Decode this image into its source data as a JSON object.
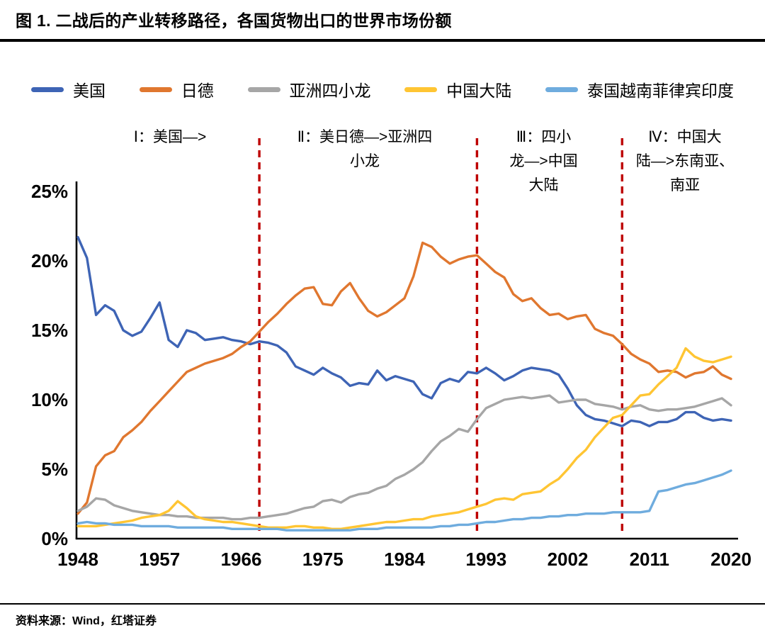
{
  "title": "图 1. 二战后的产业转移路径，各国货物出口的世界市场份额",
  "source": "资料来源：Wind，红塔证券",
  "chart_data": {
    "type": "line",
    "title": "二战后的产业转移路径，各国货物出口的世界市场份额",
    "xlabel": "",
    "ylabel": "",
    "ylim": [
      0,
      25
    ],
    "grid": false,
    "legend_position": "top",
    "x": [
      1948,
      1949,
      1950,
      1951,
      1952,
      1953,
      1954,
      1955,
      1956,
      1957,
      1958,
      1959,
      1960,
      1961,
      1962,
      1963,
      1964,
      1965,
      1966,
      1967,
      1968,
      1969,
      1970,
      1971,
      1972,
      1973,
      1974,
      1975,
      1976,
      1977,
      1978,
      1979,
      1980,
      1981,
      1982,
      1983,
      1984,
      1985,
      1986,
      1987,
      1988,
      1989,
      1990,
      1991,
      1992,
      1993,
      1994,
      1995,
      1996,
      1997,
      1998,
      1999,
      2000,
      2001,
      2002,
      2003,
      2004,
      2005,
      2006,
      2007,
      2008,
      2009,
      2010,
      2011,
      2012,
      2013,
      2014,
      2015,
      2016,
      2017,
      2018,
      2019,
      2020
    ],
    "yticks": [
      {
        "v": 0,
        "label": "0%"
      },
      {
        "v": 5,
        "label": "5%"
      },
      {
        "v": 10,
        "label": "10%"
      },
      {
        "v": 15,
        "label": "15%"
      },
      {
        "v": 20,
        "label": "20%"
      },
      {
        "v": 25,
        "label": "25%"
      }
    ],
    "xticks": [
      {
        "v": 1948,
        "label": "1948"
      },
      {
        "v": 1957,
        "label": "1957"
      },
      {
        "v": 1966,
        "label": "1966"
      },
      {
        "v": 1975,
        "label": "1975"
      },
      {
        "v": 1984,
        "label": "1984"
      },
      {
        "v": 1993,
        "label": "1993"
      },
      {
        "v": 2002,
        "label": "2002"
      },
      {
        "v": 2011,
        "label": "2011"
      },
      {
        "v": 2020,
        "label": "2020"
      }
    ],
    "dividers": {
      "color": "#BE0000",
      "years": [
        1968,
        1992,
        2008
      ]
    },
    "annotations": [
      {
        "text": "Ⅰ：美国—>"
      },
      {
        "text": "Ⅱ：美日德—>亚洲四\n小龙"
      },
      {
        "text": "Ⅲ：四小\n龙—>中国\n大陆"
      },
      {
        "text": "Ⅳ：中国大\n陆—>东南亚、\n南亚"
      }
    ],
    "series": [
      {
        "name": "美国",
        "color": "#3E64B5",
        "values": [
          21.7,
          20.2,
          16.1,
          16.8,
          16.4,
          15.0,
          14.6,
          14.9,
          15.9,
          17.0,
          14.3,
          13.8,
          15.0,
          14.8,
          14.3,
          14.4,
          14.5,
          14.3,
          14.2,
          14.0,
          14.2,
          14.1,
          13.9,
          13.4,
          12.4,
          12.1,
          11.8,
          12.3,
          11.9,
          11.6,
          11.0,
          11.2,
          11.1,
          12.1,
          11.4,
          11.7,
          11.5,
          11.3,
          10.4,
          10.1,
          11.2,
          11.5,
          11.3,
          12.0,
          11.9,
          12.3,
          11.9,
          11.4,
          11.7,
          12.1,
          12.3,
          12.2,
          12.1,
          11.8,
          10.8,
          9.6,
          8.9,
          8.6,
          8.5,
          8.3,
          8.1,
          8.5,
          8.4,
          8.1,
          8.4,
          8.4,
          8.6,
          9.1,
          9.1,
          8.7,
          8.5,
          8.6,
          8.5
        ]
      },
      {
        "name": "日德",
        "color": "#E0772F",
        "values": [
          1.8,
          2.6,
          5.2,
          6.0,
          6.3,
          7.3,
          7.8,
          8.4,
          9.2,
          9.9,
          10.6,
          11.3,
          12.0,
          12.3,
          12.6,
          12.8,
          13.0,
          13.3,
          13.8,
          14.2,
          14.9,
          15.6,
          16.2,
          16.9,
          17.5,
          18.0,
          18.1,
          16.9,
          16.8,
          17.8,
          18.4,
          17.3,
          16.4,
          16.0,
          16.3,
          16.8,
          17.3,
          18.9,
          21.3,
          21.0,
          20.3,
          19.8,
          20.1,
          20.3,
          20.4,
          19.8,
          19.2,
          18.8,
          17.6,
          17.1,
          17.3,
          16.6,
          16.1,
          16.2,
          15.8,
          16.0,
          16.1,
          15.1,
          14.8,
          14.6,
          14.0,
          13.3,
          12.9,
          12.6,
          12.0,
          12.1,
          12.0,
          11.6,
          11.9,
          12.0,
          12.4,
          11.8,
          11.5
        ]
      },
      {
        "name": "亚洲四小龙",
        "color": "#A6A6A6",
        "values": [
          2.0,
          2.3,
          2.9,
          2.8,
          2.4,
          2.2,
          2.0,
          1.9,
          1.8,
          1.7,
          1.7,
          1.6,
          1.6,
          1.5,
          1.5,
          1.5,
          1.5,
          1.4,
          1.4,
          1.5,
          1.5,
          1.6,
          1.7,
          1.8,
          2.0,
          2.2,
          2.3,
          2.7,
          2.8,
          2.6,
          3.0,
          3.2,
          3.3,
          3.6,
          3.8,
          4.3,
          4.6,
          5.0,
          5.5,
          6.3,
          7.0,
          7.4,
          7.9,
          7.7,
          8.6,
          9.4,
          9.7,
          10.0,
          10.1,
          10.2,
          10.1,
          10.2,
          10.3,
          9.8,
          9.9,
          10.0,
          10.0,
          9.7,
          9.6,
          9.5,
          9.3,
          9.5,
          9.6,
          9.3,
          9.2,
          9.3,
          9.3,
          9.4,
          9.5,
          9.7,
          9.9,
          10.1,
          9.6
        ]
      },
      {
        "name": "中国大陆",
        "color": "#FFC533",
        "values": [
          0.9,
          0.9,
          0.9,
          1.0,
          1.1,
          1.2,
          1.3,
          1.5,
          1.6,
          1.7,
          2.0,
          2.7,
          2.2,
          1.6,
          1.4,
          1.3,
          1.2,
          1.2,
          1.1,
          1.0,
          0.9,
          0.8,
          0.8,
          0.8,
          0.9,
          0.9,
          0.8,
          0.8,
          0.7,
          0.7,
          0.8,
          0.9,
          1.0,
          1.1,
          1.2,
          1.2,
          1.3,
          1.4,
          1.4,
          1.6,
          1.7,
          1.8,
          1.9,
          2.1,
          2.3,
          2.5,
          2.8,
          2.9,
          2.8,
          3.2,
          3.3,
          3.4,
          3.9,
          4.3,
          5.0,
          5.8,
          6.4,
          7.3,
          8.0,
          8.7,
          8.9,
          9.6,
          10.3,
          10.4,
          11.1,
          11.7,
          12.3,
          13.7,
          13.1,
          12.8,
          12.7,
          12.9,
          13.1
        ]
      },
      {
        "name": "泰国越南菲律宾印度",
        "color": "#6FACDE",
        "values": [
          1.1,
          1.2,
          1.1,
          1.1,
          1.0,
          1.0,
          1.0,
          0.9,
          0.9,
          0.9,
          0.9,
          0.8,
          0.8,
          0.8,
          0.8,
          0.8,
          0.8,
          0.7,
          0.7,
          0.7,
          0.7,
          0.7,
          0.7,
          0.6,
          0.6,
          0.6,
          0.6,
          0.6,
          0.6,
          0.6,
          0.6,
          0.7,
          0.7,
          0.7,
          0.8,
          0.8,
          0.8,
          0.8,
          0.8,
          0.8,
          0.9,
          0.9,
          1.0,
          1.0,
          1.1,
          1.2,
          1.2,
          1.3,
          1.4,
          1.4,
          1.5,
          1.5,
          1.6,
          1.6,
          1.7,
          1.7,
          1.8,
          1.8,
          1.8,
          1.9,
          1.9,
          1.9,
          1.9,
          2.0,
          3.4,
          3.5,
          3.7,
          3.9,
          4.0,
          4.2,
          4.4,
          4.6,
          4.9
        ]
      }
    ]
  }
}
